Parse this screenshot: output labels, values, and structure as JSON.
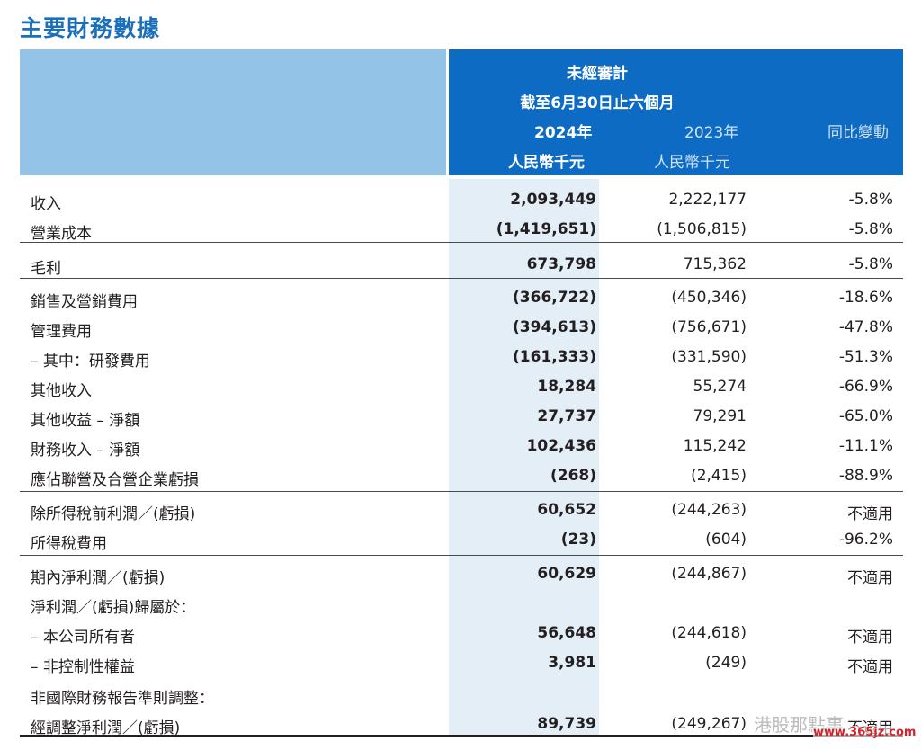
{
  "title": "主要財務數據",
  "header": {
    "audit": "未經審計",
    "period": "截至6月30日止六個月",
    "col2024_year": "2024年",
    "col2024_unit": "人民幣千元",
    "col2023_year": "2023年",
    "col2023_unit": "人民幣千元",
    "col_change": "同比變動"
  },
  "rows": [
    {
      "label": "收入",
      "v2024": "2,093,449",
      "v2023": "2,222,177",
      "change": "-5.8%"
    },
    {
      "label": "營業成本",
      "v2024": "(1,419,651)",
      "v2023": "(1,506,815)",
      "change": "-5.8%"
    },
    {
      "label": "毛利",
      "v2024": "673,798",
      "v2023": "715,362",
      "change": "-5.8%"
    },
    {
      "label": "銷售及營銷費用",
      "v2024": "(366,722)",
      "v2023": "(450,346)",
      "change": "-18.6%"
    },
    {
      "label": "管理費用",
      "v2024": "(394,613)",
      "v2023": "(756,671)",
      "change": "-47.8%"
    },
    {
      "label": "– 其中：研發費用",
      "v2024": "(161,333)",
      "v2023": "(331,590)",
      "change": "-51.3%"
    },
    {
      "label": "其他收入",
      "v2024": "18,284",
      "v2023": "55,274",
      "change": "-66.9%"
    },
    {
      "label": "其他收益 – 淨額",
      "v2024": "27,737",
      "v2023": "79,291",
      "change": "-65.0%"
    },
    {
      "label": "財務收入 – 淨額",
      "v2024": "102,436",
      "v2023": "115,242",
      "change": "-11.1%"
    },
    {
      "label": "應佔聯營及合營企業虧損",
      "v2024": "(268)",
      "v2023": "(2,415)",
      "change": "-88.9%"
    },
    {
      "label": "除所得稅前利潤／(虧損)",
      "v2024": "60,652",
      "v2023": "(244,263)",
      "change": "不適用"
    },
    {
      "label": "所得稅費用",
      "v2024": "(23)",
      "v2023": "(604)",
      "change": "-96.2%"
    },
    {
      "label": "期內淨利潤／(虧損)",
      "v2024": "60,629",
      "v2023": "(244,867)",
      "change": "不適用"
    },
    {
      "label": "淨利潤／(虧損)歸屬於：",
      "v2024": "",
      "v2023": "",
      "change": ""
    },
    {
      "label": "– 本公司所有者",
      "v2024": "56,648",
      "v2023": "(244,618)",
      "change": "不適用"
    },
    {
      "label": "– 非控制性權益",
      "v2024": "3,981",
      "v2023": "(249)",
      "change": "不適用"
    },
    {
      "label": "非國際財務報告準則調整：",
      "v2024": "",
      "v2023": "",
      "change": ""
    },
    {
      "label": "經調整淨利潤／(虧損)",
      "v2024": "89,739",
      "v2023": "(249,267)",
      "change": "不適用"
    }
  ],
  "watermark": {
    "text": "港股那點事",
    "url": "www.365jz.com"
  },
  "colors": {
    "accent": "#1a6fb8",
    "header_dark": "#0d6bc4",
    "header_light": "#93c3e6",
    "highlight": "#e4eef7"
  }
}
